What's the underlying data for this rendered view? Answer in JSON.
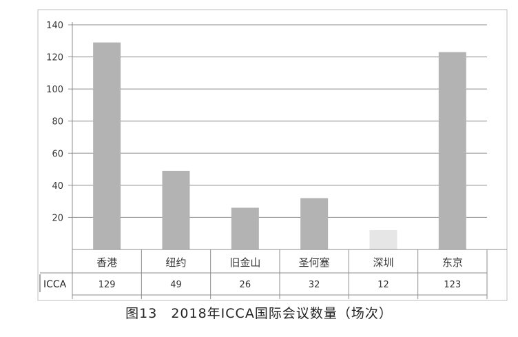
{
  "chart_data": {
    "type": "bar",
    "categories": [
      "香港",
      "纽约",
      "旧金山",
      "圣何塞",
      "深圳",
      "东京"
    ],
    "series": [
      {
        "name": "ICCA",
        "values": [
          129,
          49,
          26,
          32,
          12,
          123
        ]
      }
    ],
    "value_labels": [
      "129",
      "49",
      "26",
      "32",
      "12",
      "123"
    ],
    "bar_colors": [
      "#b3b3b3",
      "#b3b3b3",
      "#b3b3b3",
      "#b3b3b3",
      "#e6e6e6",
      "#b3b3b3"
    ],
    "ylim": [
      0,
      140
    ],
    "yticks": [
      "20",
      "40",
      "60",
      "80",
      "100",
      "120",
      "140"
    ],
    "grid": true,
    "data_table": true
  },
  "caption": "图13　2018年ICCA国际会议数量（场次）"
}
